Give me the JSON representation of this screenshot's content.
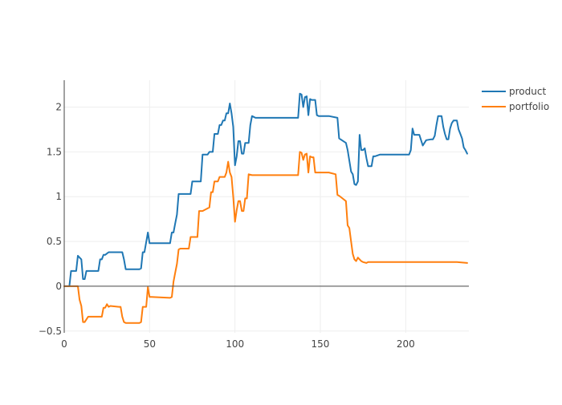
{
  "colors": {
    "product": "#1f77b4",
    "portfolio": "#ff7f0e",
    "grid": "#eeeeee",
    "axis": "#444444"
  },
  "chart_data": {
    "type": "line",
    "title": "",
    "xlabel": "",
    "ylabel": "",
    "xlim": [
      0,
      237
    ],
    "ylim": [
      -0.52,
      2.3
    ],
    "xticks": [
      0,
      50,
      100,
      150,
      200
    ],
    "xtick_labels": [
      "0",
      "50",
      "100",
      "150",
      "200"
    ],
    "yticks": [
      -0.5,
      0,
      0.5,
      1,
      1.5,
      2
    ],
    "ytick_labels": [
      "−0.5",
      "0",
      "0.5",
      "1",
      "1.5",
      "2"
    ],
    "grid": true,
    "legend_position": "top-right",
    "series": [
      {
        "name": "product",
        "color": "#1f77b4",
        "x": [
          0,
          3,
          4,
          7,
          8,
          10,
          11,
          12,
          13,
          14,
          20,
          21,
          22,
          23,
          24,
          26,
          27,
          34,
          35,
          36,
          44,
          45,
          46,
          47,
          49,
          50,
          51,
          62,
          63,
          64,
          65,
          66,
          67,
          69,
          74,
          75,
          80,
          81,
          84,
          85,
          87,
          88,
          90,
          91,
          92,
          93,
          94,
          95,
          96,
          97,
          98,
          99,
          100,
          101,
          102,
          103,
          104,
          105,
          106,
          107,
          108,
          109,
          110,
          111,
          112,
          113,
          120,
          137,
          138,
          139,
          140,
          141,
          142,
          143,
          144,
          145,
          146,
          147,
          148,
          149,
          155,
          160,
          161,
          165,
          166,
          168,
          169,
          170,
          171,
          172,
          173,
          174,
          175,
          176,
          177,
          178,
          179,
          180,
          181,
          182,
          185,
          190,
          200,
          202,
          203,
          204,
          205,
          206,
          208,
          210,
          212,
          215,
          216,
          217,
          218,
          219,
          220,
          221,
          222,
          223,
          224,
          225,
          226,
          227,
          228,
          229,
          230,
          231,
          232,
          233,
          234,
          235,
          236
        ],
        "values": [
          0,
          0,
          0.17,
          0.17,
          0.34,
          0.3,
          0.08,
          0.08,
          0.17,
          0.17,
          0.17,
          0.3,
          0.3,
          0.35,
          0.35,
          0.38,
          0.38,
          0.38,
          0.3,
          0.19,
          0.19,
          0.2,
          0.38,
          0.38,
          0.6,
          0.48,
          0.48,
          0.48,
          0.6,
          0.6,
          0.7,
          0.8,
          1.03,
          1.03,
          1.03,
          1.17,
          1.17,
          1.47,
          1.47,
          1.5,
          1.5,
          1.7,
          1.7,
          1.8,
          1.8,
          1.85,
          1.85,
          1.93,
          1.93,
          2.04,
          1.93,
          1.78,
          1.35,
          1.45,
          1.62,
          1.62,
          1.48,
          1.48,
          1.6,
          1.6,
          1.6,
          1.8,
          1.9,
          1.89,
          1.88,
          1.88,
          1.88,
          1.88,
          2.15,
          2.14,
          2.0,
          2.11,
          2.12,
          1.91,
          2.09,
          2.08,
          2.08,
          2.08,
          1.91,
          1.9,
          1.9,
          1.88,
          1.65,
          1.6,
          1.52,
          1.28,
          1.25,
          1.14,
          1.13,
          1.17,
          1.69,
          1.52,
          1.52,
          1.54,
          1.43,
          1.34,
          1.34,
          1.34,
          1.45,
          1.45,
          1.47,
          1.47,
          1.47,
          1.47,
          1.52,
          1.76,
          1.69,
          1.69,
          1.69,
          1.57,
          1.63,
          1.64,
          1.64,
          1.68,
          1.8,
          1.9,
          1.9,
          1.9,
          1.78,
          1.7,
          1.64,
          1.64,
          1.76,
          1.82,
          1.85,
          1.85,
          1.85,
          1.75,
          1.7,
          1.65,
          1.55,
          1.52,
          1.48
        ],
        "_note": "values read off axes"
      },
      {
        "name": "portfolio",
        "color": "#ff7f0e",
        "x": [
          0,
          7,
          8,
          9,
          10,
          11,
          12,
          14,
          20,
          22,
          23,
          24,
          25,
          26,
          27,
          32,
          33,
          34,
          35,
          36,
          44,
          45,
          46,
          48,
          49,
          50,
          51,
          62,
          63,
          64,
          65,
          66,
          67,
          68,
          73,
          74,
          78,
          79,
          81,
          82,
          85,
          86,
          87,
          88,
          90,
          91,
          94,
          95,
          96,
          97,
          98,
          99,
          100,
          101,
          102,
          103,
          104,
          105,
          106,
          107,
          108,
          110,
          111,
          112,
          113,
          120,
          137,
          138,
          139,
          140,
          141,
          142,
          143,
          144,
          145,
          146,
          147,
          148,
          150,
          155,
          159,
          160,
          161,
          163,
          165,
          166,
          167,
          168,
          169,
          170,
          171,
          172,
          173,
          174,
          175,
          177,
          178,
          180,
          190,
          200,
          205,
          210,
          220,
          230,
          236
        ],
        "values": [
          0,
          0,
          0,
          -0.15,
          -0.22,
          -0.4,
          -0.4,
          -0.34,
          -0.34,
          -0.34,
          -0.24,
          -0.24,
          -0.2,
          -0.23,
          -0.22,
          -0.23,
          -0.23,
          -0.34,
          -0.4,
          -0.41,
          -0.41,
          -0.4,
          -0.23,
          -0.23,
          -0.01,
          -0.12,
          -0.12,
          -0.13,
          -0.12,
          0.05,
          0.15,
          0.25,
          0.41,
          0.42,
          0.42,
          0.55,
          0.55,
          0.84,
          0.84,
          0.85,
          0.88,
          1.05,
          1.05,
          1.17,
          1.17,
          1.22,
          1.22,
          1.27,
          1.39,
          1.27,
          1.22,
          1.0,
          0.72,
          0.85,
          0.95,
          0.95,
          0.84,
          0.84,
          0.98,
          0.98,
          1.25,
          1.24,
          1.24,
          1.24,
          1.24,
          1.24,
          1.24,
          1.5,
          1.49,
          1.41,
          1.47,
          1.48,
          1.27,
          1.45,
          1.44,
          1.44,
          1.27,
          1.27,
          1.27,
          1.27,
          1.25,
          1.02,
          1.01,
          0.98,
          0.95,
          0.68,
          0.65,
          0.5,
          0.36,
          0.3,
          0.28,
          0.32,
          0.3,
          0.28,
          0.27,
          0.26,
          0.27,
          0.27,
          0.27,
          0.27,
          0.27,
          0.27,
          0.27,
          0.27,
          0.26
        ]
      }
    ]
  }
}
